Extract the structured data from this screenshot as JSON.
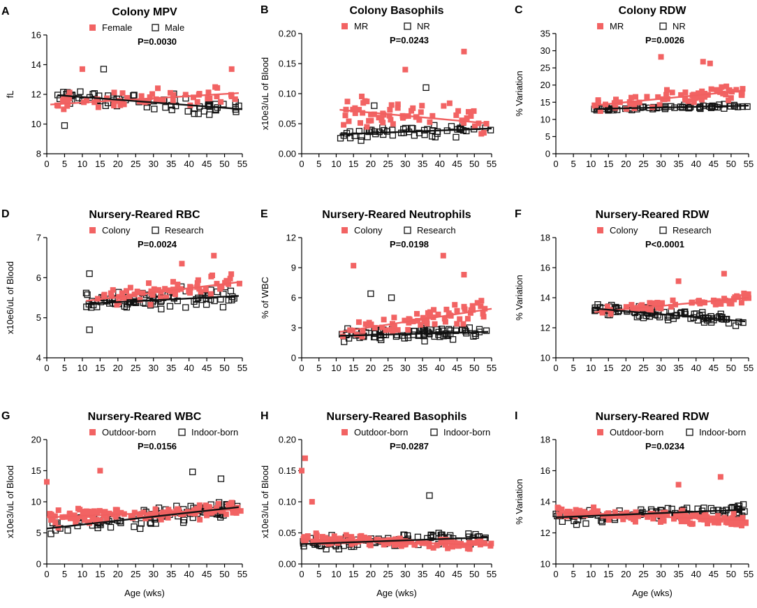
{
  "colors": {
    "pink": "#f26363",
    "trend_pink": "#f06060",
    "black": "#111111"
  },
  "chart_data": [
    {
      "type": "scatter",
      "panel_label": "A",
      "title": "Colony MPV",
      "pvalue": "P=0.0030",
      "ylabel": "fL",
      "xlabel": "",
      "xlim": [
        0,
        55
      ],
      "ylim": [
        8,
        16
      ],
      "xticks": [
        0,
        5,
        10,
        15,
        20,
        25,
        30,
        35,
        40,
        45,
        50,
        55
      ],
      "yticks": [
        8,
        10,
        12,
        14,
        16
      ],
      "series": [
        {
          "name": "Female",
          "style": "filled",
          "seed": 11,
          "n": 55,
          "xrange": [
            1,
            54
          ],
          "trend": [
            11.3,
            12.1
          ],
          "spread": 0.9,
          "outliers": [
            [
              52,
              13.7
            ],
            [
              10,
              13.7
            ]
          ]
        },
        {
          "name": "Male",
          "style": "open",
          "seed": 12,
          "n": 70,
          "xrange": [
            3,
            55
          ],
          "trend": [
            12.0,
            11.0
          ],
          "spread": 0.9,
          "outliers": [
            [
              16,
              13.7
            ],
            [
              5,
              9.9
            ]
          ]
        }
      ]
    },
    {
      "type": "scatter",
      "panel_label": "B",
      "title": "Colony Basophils",
      "pvalue": "P=0.0243",
      "ylabel": "x10e3/uL of Blood",
      "xlabel": "",
      "xlim": [
        0,
        55
      ],
      "ylim": [
        0,
        0.2
      ],
      "xticks": [
        0,
        5,
        10,
        15,
        20,
        25,
        30,
        35,
        40,
        45,
        50,
        55
      ],
      "yticks": [
        0,
        0.05,
        0.1,
        0.15,
        0.2
      ],
      "ytick_labels": [
        "0.00",
        "0.05",
        "0.10",
        "0.15",
        "0.20"
      ],
      "series": [
        {
          "name": "MR",
          "style": "filled",
          "seed": 21,
          "n": 60,
          "xrange": [
            11,
            54
          ],
          "trend": [
            0.079,
            0.05
          ],
          "spread": 0.035,
          "outliers": [
            [
              47,
              0.17
            ],
            [
              30,
              0.14
            ]
          ]
        },
        {
          "name": "NR",
          "style": "open",
          "seed": 22,
          "n": 55,
          "xrange": [
            11,
            55
          ],
          "trend": [
            0.03,
            0.042
          ],
          "spread": 0.015,
          "outliers": [
            [
              36,
              0.11
            ],
            [
              21,
              0.08
            ]
          ]
        }
      ]
    },
    {
      "type": "scatter",
      "panel_label": "C",
      "title": "Colony RDW",
      "pvalue": "P=0.0026",
      "ylabel": "% Variation",
      "xlabel": "",
      "xlim": [
        0,
        55
      ],
      "ylim": [
        0,
        35
      ],
      "xticks": [
        0,
        5,
        10,
        15,
        20,
        25,
        30,
        35,
        40,
        45,
        50,
        55
      ],
      "yticks": [
        0,
        5,
        10,
        15,
        20,
        25,
        30,
        35
      ],
      "series": [
        {
          "name": "MR",
          "style": "filled",
          "seed": 31,
          "n": 65,
          "xrange": [
            11,
            54
          ],
          "trend": [
            13.0,
            18.5
          ],
          "spread": 3.0,
          "outliers": [
            [
              30,
              28.2
            ],
            [
              42,
              26.8
            ],
            [
              44,
              26.3
            ]
          ]
        },
        {
          "name": "NR",
          "style": "open",
          "seed": 32,
          "n": 60,
          "xrange": [
            11,
            55
          ],
          "trend": [
            12.8,
            14.0
          ],
          "spread": 0.8,
          "outliers": []
        }
      ]
    },
    {
      "type": "scatter",
      "panel_label": "D",
      "title": "Nursery-Reared RBC",
      "pvalue": "P=0.0024",
      "ylabel": "x10e6/uL of Blood",
      "xlabel": "",
      "xlim": [
        0,
        55
      ],
      "ylim": [
        4,
        7
      ],
      "xticks": [
        0,
        5,
        10,
        15,
        20,
        25,
        30,
        35,
        40,
        45,
        50,
        55
      ],
      "yticks": [
        4,
        5,
        6,
        7
      ],
      "series": [
        {
          "name": "Colony",
          "style": "filled",
          "seed": 41,
          "n": 60,
          "xrange": [
            11,
            55
          ],
          "trend": [
            5.3,
            5.9
          ],
          "spread": 0.35,
          "outliers": [
            [
              47,
              6.55
            ],
            [
              38,
              6.35
            ]
          ]
        },
        {
          "name": "Research",
          "style": "open",
          "seed": 42,
          "n": 90,
          "xrange": [
            11,
            54
          ],
          "trend": [
            5.3,
            5.55
          ],
          "spread": 0.35,
          "outliers": [
            [
              12,
              6.1
            ],
            [
              12,
              4.7
            ]
          ]
        }
      ]
    },
    {
      "type": "scatter",
      "panel_label": "E",
      "title": "Nursery-Reared Neutrophils",
      "pvalue": "P=0.0198",
      "ylabel": "% of WBC",
      "xlabel": "",
      "xlim": [
        0,
        55
      ],
      "ylim": [
        0,
        12
      ],
      "xticks": [
        0,
        5,
        10,
        15,
        20,
        25,
        30,
        35,
        40,
        45,
        50,
        55
      ],
      "yticks": [
        0,
        3,
        6,
        9,
        12
      ],
      "series": [
        {
          "name": "Colony",
          "style": "filled",
          "seed": 51,
          "n": 65,
          "xrange": [
            11,
            55
          ],
          "trend": [
            2.0,
            4.9
          ],
          "spread": 1.4,
          "outliers": [
            [
              41,
              10.2
            ],
            [
              15,
              9.2
            ],
            [
              47,
              8.3
            ]
          ]
        },
        {
          "name": "Research",
          "style": "open",
          "seed": 52,
          "n": 90,
          "xrange": [
            11,
            54
          ],
          "trend": [
            2.1,
            2.6
          ],
          "spread": 1.0,
          "outliers": [
            [
              20,
              6.4
            ],
            [
              26,
              6.0
            ]
          ]
        }
      ]
    },
    {
      "type": "scatter",
      "panel_label": "F",
      "title": "Nursery-Reared RDW",
      "pvalue": "P<0.0001",
      "ylabel": "% Variation",
      "xlabel": "",
      "xlim": [
        0,
        55
      ],
      "ylim": [
        10,
        18
      ],
      "xticks": [
        0,
        5,
        10,
        15,
        20,
        25,
        30,
        35,
        40,
        45,
        50,
        55
      ],
      "yticks": [
        10,
        12,
        14,
        16,
        18
      ],
      "series": [
        {
          "name": "Colony",
          "style": "filled",
          "seed": 61,
          "n": 60,
          "xrange": [
            11,
            55
          ],
          "trend": [
            12.8,
            14.0
          ],
          "spread": 0.5,
          "outliers": [
            [
              48,
              15.6
            ],
            [
              35,
              15.1
            ]
          ]
        },
        {
          "name": "Research",
          "style": "open",
          "seed": 62,
          "n": 90,
          "xrange": [
            11,
            54
          ],
          "trend": [
            13.5,
            12.4
          ],
          "spread": 0.5,
          "outliers": []
        }
      ]
    },
    {
      "type": "scatter",
      "panel_label": "G",
      "title": "Nursery-Reared WBC",
      "pvalue": "P=0.0156",
      "ylabel": "x10e3/uL of Blood",
      "xlabel": "Age (wks)",
      "xlim": [
        0,
        55
      ],
      "ylim": [
        0,
        20
      ],
      "xticks": [
        0,
        5,
        10,
        15,
        20,
        25,
        30,
        35,
        40,
        45,
        50,
        55
      ],
      "yticks": [
        0,
        5,
        10,
        15,
        20
      ],
      "series": [
        {
          "name": "Outdoor-born",
          "style": "filled",
          "seed": 71,
          "n": 120,
          "xrange": [
            0,
            55
          ],
          "trend": [
            7.5,
            8.8
          ],
          "spread": 1.8,
          "outliers": [
            [
              0,
              13.2
            ],
            [
              15,
              15.0
            ]
          ]
        },
        {
          "name": "Indoor-born",
          "style": "open",
          "seed": 72,
          "n": 90,
          "xrange": [
            0,
            54
          ],
          "trend": [
            5.7,
            9.2
          ],
          "spread": 2.0,
          "outliers": [
            [
              41,
              14.8
            ],
            [
              49,
              13.7
            ]
          ]
        }
      ]
    },
    {
      "type": "scatter",
      "panel_label": "H",
      "title": "Nursery-Reared Basophils",
      "pvalue": "P=0.0287",
      "ylabel": "x10e3/uL of Blood",
      "xlabel": "Age (wks)",
      "xlim": [
        0,
        55
      ],
      "ylim": [
        0,
        0.2
      ],
      "xticks": [
        0,
        5,
        10,
        15,
        20,
        25,
        30,
        35,
        40,
        45,
        50,
        55
      ],
      "yticks": [
        0,
        0.05,
        0.1,
        0.15,
        0.2
      ],
      "ytick_labels": [
        "0.00",
        "0.05",
        "0.10",
        "0.15",
        "0.20"
      ],
      "series": [
        {
          "name": "Outdoor-born",
          "style": "filled",
          "seed": 81,
          "n": 120,
          "xrange": [
            0,
            55
          ],
          "trend": [
            0.04,
            0.03
          ],
          "spread": 0.012,
          "outliers": [
            [
              1,
              0.17
            ],
            [
              0,
              0.15
            ],
            [
              3,
              0.1
            ]
          ]
        },
        {
          "name": "Indoor-born",
          "style": "open",
          "seed": 82,
          "n": 90,
          "xrange": [
            0,
            54
          ],
          "trend": [
            0.032,
            0.043
          ],
          "spread": 0.015,
          "outliers": [
            [
              37,
              0.11
            ]
          ]
        }
      ]
    },
    {
      "type": "scatter",
      "panel_label": "I",
      "title": "Nursery-Reared RDW",
      "pvalue": "P=0.0234",
      "ylabel": "% Variation",
      "xlabel": "Age (wks)",
      "xlim": [
        0,
        55
      ],
      "ylim": [
        10,
        18
      ],
      "xticks": [
        0,
        5,
        10,
        15,
        20,
        25,
        30,
        35,
        40,
        45,
        50,
        55
      ],
      "yticks": [
        10,
        12,
        14,
        16,
        18
      ],
      "series": [
        {
          "name": "Outdoor-born",
          "style": "filled",
          "seed": 91,
          "n": 120,
          "xrange": [
            0,
            55
          ],
          "trend": [
            13.3,
            12.8
          ],
          "spread": 0.55,
          "outliers": [
            [
              47,
              15.6
            ],
            [
              35,
              15.1
            ]
          ]
        },
        {
          "name": "Indoor-born",
          "style": "open",
          "seed": 92,
          "n": 90,
          "xrange": [
            0,
            54
          ],
          "trend": [
            13.0,
            13.5
          ],
          "spread": 0.55,
          "outliers": []
        }
      ]
    }
  ]
}
